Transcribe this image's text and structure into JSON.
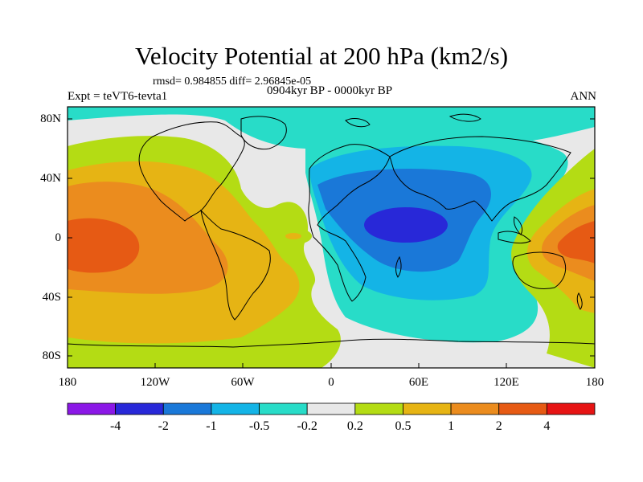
{
  "title": "Velocity Potential at 200 hPa (km2/s)",
  "stats": "rmsd= 0.984855 diff= 2.96845e-05",
  "experiment": "Expt = teVT6-tevta1",
  "period": "0904kyr BP - 0000kyr BP",
  "season": "ANN",
  "lat_labels": [
    "80N",
    "40N",
    "0",
    "40S",
    "80S"
  ],
  "lon_labels": [
    "180",
    "120W",
    "60W",
    "0",
    "60E",
    "120E",
    "180"
  ],
  "colorbar": {
    "colors": [
      "#8b18e6",
      "#2828d8",
      "#1a78d8",
      "#14b4e6",
      "#28dcc8",
      "#e8e8e8",
      "#b4dc14",
      "#e6b414",
      "#eb8c1e",
      "#e65a14",
      "#e61414"
    ],
    "labels": [
      "-4",
      "-2",
      "-1",
      "-0.5",
      "-0.2",
      "0.2",
      "0.5",
      "1",
      "2",
      "4"
    ]
  },
  "map_icon": "world-coastline-icon"
}
